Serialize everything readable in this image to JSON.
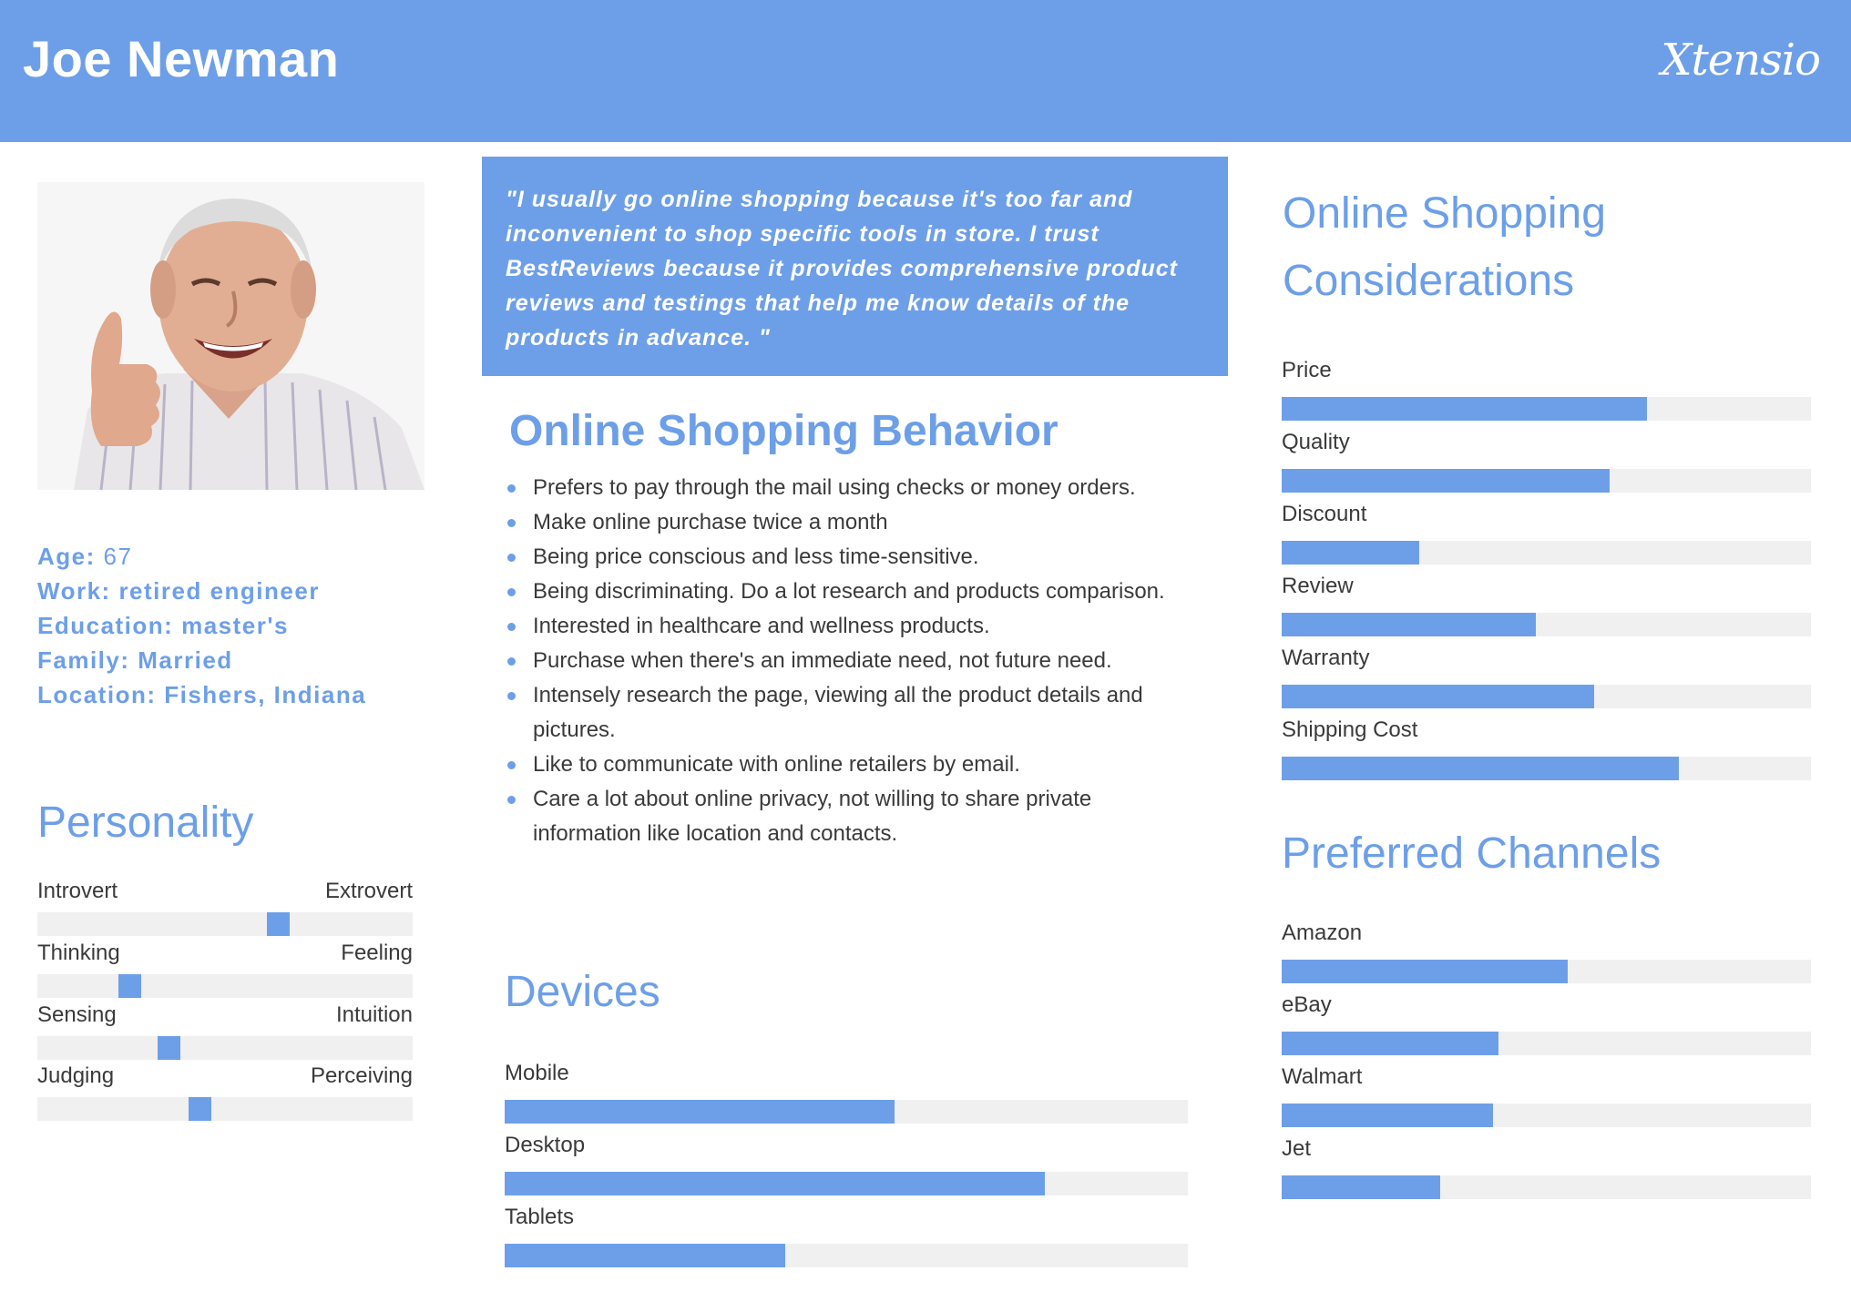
{
  "header": {
    "name": "Joe Newman",
    "brand": "Xtensio"
  },
  "profile": {
    "age_label": "Age:",
    "age_value": "67",
    "work_label": "Work:",
    "work_value": "retired engineer",
    "education_label": "Education:",
    "education_value": "master's",
    "family_label": "Family:",
    "family_value": "Married",
    "location_label": "Location:",
    "location_value": "Fishers, Indiana"
  },
  "personality": {
    "title": "Personality",
    "traits": [
      {
        "left": "Introvert",
        "right": "Extrovert",
        "level": 0.65
      },
      {
        "left": "Thinking",
        "right": "Feeling",
        "level": 0.23
      },
      {
        "left": "Sensing",
        "right": "Intuition",
        "level": 0.34
      },
      {
        "left": "Judging",
        "right": "Perceiving",
        "level": 0.43
      }
    ]
  },
  "quote": "\"I usually go online shopping because it's too far and inconvenient to shop specific tools in store. I trust BestReviews because it provides comprehensive product reviews and testings that help me know details of the products in advance. \"",
  "behavior": {
    "title": "Online Shopping Behavior",
    "items": [
      "Prefers to pay through the mail using checks or money orders.",
      "Make online purchase twice a month",
      "Being price conscious and less time-sensitive.",
      "Being discriminating. Do a lot research and products comparison.",
      "Interested in healthcare and wellness products.",
      "Purchase when there's an immediate need, not future need.",
      "Intensely research the page, viewing all the product details and pictures.",
      "Like to communicate with online retailers by email.",
      "Care a lot about online privacy, not willing to share private information like location and contacts."
    ]
  },
  "devices": {
    "title": "Devices",
    "items": [
      {
        "label": "Mobile",
        "value": 0.57
      },
      {
        "label": "Desktop",
        "value": 0.79
      },
      {
        "label": "Tablets",
        "value": 0.41
      }
    ]
  },
  "considerations": {
    "title_line1": "Online Shopping",
    "title_line2": "Considerations",
    "items": [
      {
        "label": "Price",
        "value": 0.69
      },
      {
        "label": "Quality",
        "value": 0.62
      },
      {
        "label": "Discount",
        "value": 0.26
      },
      {
        "label": "Review",
        "value": 0.48
      },
      {
        "label": "Warranty",
        "value": 0.59
      },
      {
        "label": "Shipping Cost",
        "value": 0.75
      }
    ]
  },
  "channels": {
    "title": "Preferred Channels",
    "items": [
      {
        "label": "Amazon",
        "value": 0.54
      },
      {
        "label": "eBay",
        "value": 0.41
      },
      {
        "label": "Walmart",
        "value": 0.4
      },
      {
        "label": "Jet",
        "value": 0.3
      }
    ]
  },
  "colors": {
    "accent": "#6d9fe8",
    "track": "#f0f0f0",
    "text": "#3a3a3a"
  }
}
